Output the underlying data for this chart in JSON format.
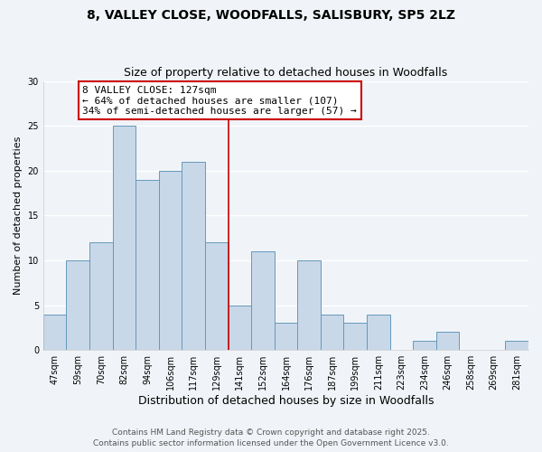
{
  "title": "8, VALLEY CLOSE, WOODFALLS, SALISBURY, SP5 2LZ",
  "subtitle": "Size of property relative to detached houses in Woodfalls",
  "xlabel": "Distribution of detached houses by size in Woodfalls",
  "ylabel": "Number of detached properties",
  "bar_color": "#c8d8e8",
  "bar_edge_color": "#6699bb",
  "background_color": "#f0f4f8",
  "grid_color": "#ffffff",
  "categories": [
    "47sqm",
    "59sqm",
    "70sqm",
    "82sqm",
    "94sqm",
    "106sqm",
    "117sqm",
    "129sqm",
    "141sqm",
    "152sqm",
    "164sqm",
    "176sqm",
    "187sqm",
    "199sqm",
    "211sqm",
    "223sqm",
    "234sqm",
    "246sqm",
    "258sqm",
    "269sqm",
    "281sqm"
  ],
  "values": [
    4,
    10,
    12,
    25,
    19,
    20,
    21,
    12,
    5,
    11,
    3,
    10,
    4,
    3,
    4,
    0,
    1,
    2,
    0,
    0,
    1
  ],
  "vline_color": "#cc0000",
  "annotation_line1": "8 VALLEY CLOSE: 127sqm",
  "annotation_line2": "← 64% of detached houses are smaller (107)",
  "annotation_line3": "34% of semi-detached houses are larger (57) →",
  "annotation_box_edgecolor": "#cc0000",
  "annotation_box_facecolor": "#ffffff",
  "ylim": [
    0,
    30
  ],
  "yticks": [
    0,
    5,
    10,
    15,
    20,
    25,
    30
  ],
  "footer1": "Contains HM Land Registry data © Crown copyright and database right 2025.",
  "footer2": "Contains public sector information licensed under the Open Government Licence v3.0.",
  "title_fontsize": 10,
  "subtitle_fontsize": 9,
  "tick_fontsize": 7,
  "ylabel_fontsize": 8,
  "xlabel_fontsize": 9,
  "annotation_fontsize": 8,
  "footer_fontsize": 6.5
}
